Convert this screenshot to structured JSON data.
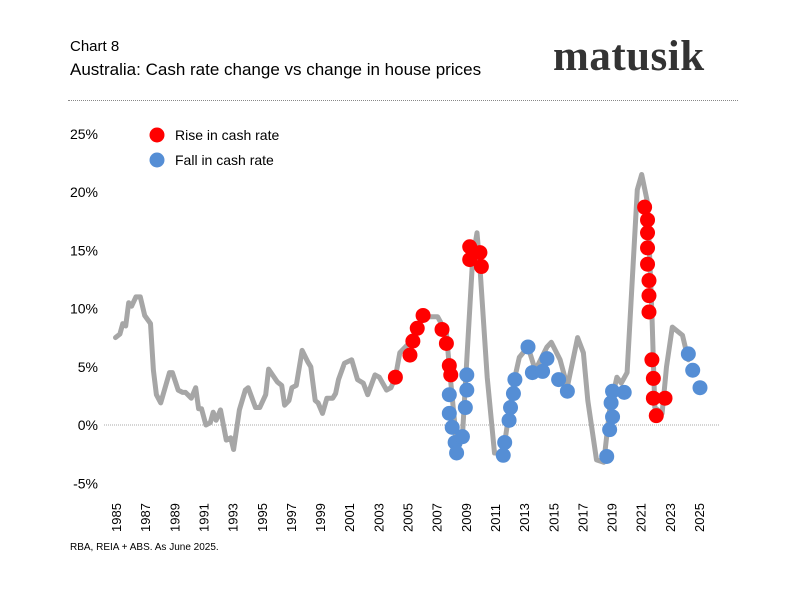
{
  "header": {
    "chart_number": "Chart 8",
    "title": "Australia: Cash rate change vs change in house prices",
    "logo": "matusik"
  },
  "footer": {
    "source": "RBA, REIA + ABS.  As June 2025."
  },
  "colors": {
    "line": "#a6a6a6",
    "rise": "#ff0000",
    "fall": "#558ed5"
  },
  "chart_data": {
    "type": "line",
    "title": "Australia: Cash rate change vs change in house prices",
    "ylim": [
      -5,
      25
    ],
    "yticks": [
      "25%",
      "20%",
      "15%",
      "10%",
      "5%",
      "0%",
      "-5%"
    ],
    "ytick_values": [
      25,
      20,
      15,
      10,
      5,
      0,
      -5
    ],
    "xticks": [
      "1985",
      "1987",
      "1989",
      "1991",
      "1993",
      "1995",
      "1997",
      "1999",
      "2001",
      "2003",
      "2005",
      "2007",
      "2009",
      "2011",
      "2013",
      "2015",
      "2017",
      "2019",
      "2021",
      "2023",
      "2025"
    ],
    "grid": false,
    "legend": {
      "placement": "top-left",
      "items": [
        {
          "label": "Rise in cash rate",
          "color": "#ff0000"
        },
        {
          "label": "Fall in cash rate",
          "color": "#558ed5"
        }
      ]
    },
    "line": [
      [
        1984.9,
        7.5
      ],
      [
        1985.2,
        7.8
      ],
      [
        1985.4,
        8.7
      ],
      [
        1985.6,
        8.5
      ],
      [
        1985.8,
        10.5
      ],
      [
        1986.0,
        10.2
      ],
      [
        1986.3,
        11.0
      ],
      [
        1986.6,
        11.0
      ],
      [
        1986.9,
        9.4
      ],
      [
        1987.3,
        8.7
      ],
      [
        1987.5,
        4.7
      ],
      [
        1987.7,
        2.6
      ],
      [
        1988.0,
        1.9
      ],
      [
        1988.6,
        4.5
      ],
      [
        1988.8,
        4.5
      ],
      [
        1989.2,
        3.0
      ],
      [
        1989.5,
        2.8
      ],
      [
        1989.7,
        2.8
      ],
      [
        1990.1,
        2.3
      ],
      [
        1990.4,
        3.2
      ],
      [
        1990.6,
        1.4
      ],
      [
        1990.8,
        1.4
      ],
      [
        1991.1,
        0.0
      ],
      [
        1991.4,
        0.2
      ],
      [
        1991.6,
        1.1
      ],
      [
        1991.8,
        0.4
      ],
      [
        1992.1,
        1.3
      ],
      [
        1992.5,
        -1.3
      ],
      [
        1992.8,
        -1.1
      ],
      [
        1993.0,
        -2.1
      ],
      [
        1993.4,
        1.3
      ],
      [
        1993.8,
        3.0
      ],
      [
        1994.0,
        3.2
      ],
      [
        1994.5,
        1.5
      ],
      [
        1994.8,
        1.5
      ],
      [
        1995.2,
        2.6
      ],
      [
        1995.4,
        4.8
      ],
      [
        1996.0,
        3.7
      ],
      [
        1996.3,
        3.4
      ],
      [
        1996.5,
        1.7
      ],
      [
        1996.8,
        2.1
      ],
      [
        1997.0,
        3.2
      ],
      [
        1997.3,
        3.4
      ],
      [
        1997.7,
        6.4
      ],
      [
        1998.1,
        5.4
      ],
      [
        1998.3,
        5.0
      ],
      [
        1998.6,
        2.1
      ],
      [
        1998.8,
        1.9
      ],
      [
        1999.1,
        1.0
      ],
      [
        1999.4,
        2.3
      ],
      [
        1999.8,
        2.3
      ],
      [
        2000.0,
        2.7
      ],
      [
        2000.2,
        3.9
      ],
      [
        2000.6,
        5.3
      ],
      [
        2001.1,
        5.6
      ],
      [
        2001.5,
        3.9
      ],
      [
        2001.9,
        3.6
      ],
      [
        2002.2,
        2.6
      ],
      [
        2002.7,
        4.3
      ],
      [
        2003.0,
        4.1
      ],
      [
        2003.5,
        3.0
      ],
      [
        2003.8,
        3.2
      ],
      [
        2004.1,
        4.1
      ],
      [
        2004.4,
        6.2
      ],
      [
        2005.1,
        7.1
      ],
      [
        2006.0,
        9.3
      ],
      [
        2007.0,
        9.3
      ],
      [
        2007.6,
        7.9
      ],
      [
        2007.8,
        5.0
      ],
      [
        2008.2,
        -0.2
      ],
      [
        2008.3,
        -2.4
      ],
      [
        2008.7,
        -1.0
      ],
      [
        2009.0,
        5.6
      ],
      [
        2009.4,
        14.2
      ],
      [
        2009.7,
        16.5
      ],
      [
        2009.9,
        13.6
      ],
      [
        2010.4,
        4.1
      ],
      [
        2010.9,
        -2.4
      ],
      [
        2011.5,
        -2.4
      ],
      [
        2011.8,
        0.2
      ],
      [
        2012.3,
        4.1
      ],
      [
        2012.6,
        5.8
      ],
      [
        2013.2,
        6.7
      ],
      [
        2013.7,
        4.7
      ],
      [
        2014.5,
        6.7
      ],
      [
        2014.8,
        7.1
      ],
      [
        2015.4,
        5.6
      ],
      [
        2015.9,
        3.3
      ],
      [
        2016.6,
        7.5
      ],
      [
        2017.0,
        6.2
      ],
      [
        2017.3,
        2.1
      ],
      [
        2017.9,
        -3.0
      ],
      [
        2018.4,
        -3.2
      ],
      [
        2018.8,
        1.3
      ],
      [
        2019.3,
        4.1
      ],
      [
        2019.6,
        3.6
      ],
      [
        2020.0,
        4.5
      ],
      [
        2020.7,
        20.2
      ],
      [
        2021.0,
        21.5
      ],
      [
        2021.4,
        19.1
      ],
      [
        2021.7,
        9.6
      ],
      [
        2021.9,
        1.5
      ],
      [
        2022.4,
        1.0
      ],
      [
        2022.7,
        5.0
      ],
      [
        2023.1,
        8.4
      ],
      [
        2023.8,
        7.7
      ],
      [
        2024.2,
        5.6
      ]
    ],
    "rise_points": [
      [
        2004.1,
        4.1
      ],
      [
        2005.1,
        6.0
      ],
      [
        2005.3,
        7.2
      ],
      [
        2005.6,
        8.3
      ],
      [
        2006.0,
        9.4
      ],
      [
        2007.3,
        8.2
      ],
      [
        2007.6,
        7.0
      ],
      [
        2007.8,
        5.1
      ],
      [
        2007.9,
        4.3
      ],
      [
        2009.2,
        15.3
      ],
      [
        2009.2,
        14.2
      ],
      [
        2009.9,
        14.8
      ],
      [
        2010.0,
        13.6
      ],
      [
        2021.2,
        18.7
      ],
      [
        2021.4,
        17.6
      ],
      [
        2021.4,
        16.5
      ],
      [
        2021.4,
        15.2
      ],
      [
        2021.4,
        13.8
      ],
      [
        2021.5,
        12.4
      ],
      [
        2021.5,
        11.1
      ],
      [
        2021.5,
        9.7
      ],
      [
        2021.7,
        5.6
      ],
      [
        2021.8,
        4.0
      ],
      [
        2021.8,
        2.3
      ],
      [
        2022.6,
        2.3
      ],
      [
        2022.0,
        0.8
      ]
    ],
    "fall_points": [
      [
        2007.8,
        2.6
      ],
      [
        2007.8,
        1.0
      ],
      [
        2008.0,
        -0.2
      ],
      [
        2008.2,
        -1.5
      ],
      [
        2008.3,
        -2.4
      ],
      [
        2008.7,
        -1.0
      ],
      [
        2009.0,
        4.3
      ],
      [
        2009.0,
        3.0
      ],
      [
        2008.9,
        1.5
      ],
      [
        2011.5,
        -2.6
      ],
      [
        2011.6,
        -1.5
      ],
      [
        2011.9,
        0.4
      ],
      [
        2012.0,
        1.5
      ],
      [
        2012.2,
        2.7
      ],
      [
        2012.3,
        3.9
      ],
      [
        2013.2,
        6.7
      ],
      [
        2013.5,
        4.5
      ],
      [
        2014.2,
        4.6
      ],
      [
        2014.5,
        5.7
      ],
      [
        2015.3,
        3.9
      ],
      [
        2015.9,
        2.9
      ],
      [
        2018.6,
        -2.7
      ],
      [
        2018.8,
        -0.4
      ],
      [
        2019.0,
        0.7
      ],
      [
        2018.9,
        1.9
      ],
      [
        2019.0,
        2.9
      ],
      [
        2019.8,
        2.8
      ],
      [
        2024.2,
        6.1
      ],
      [
        2024.5,
        4.7
      ],
      [
        2025.0,
        3.2
      ]
    ]
  }
}
